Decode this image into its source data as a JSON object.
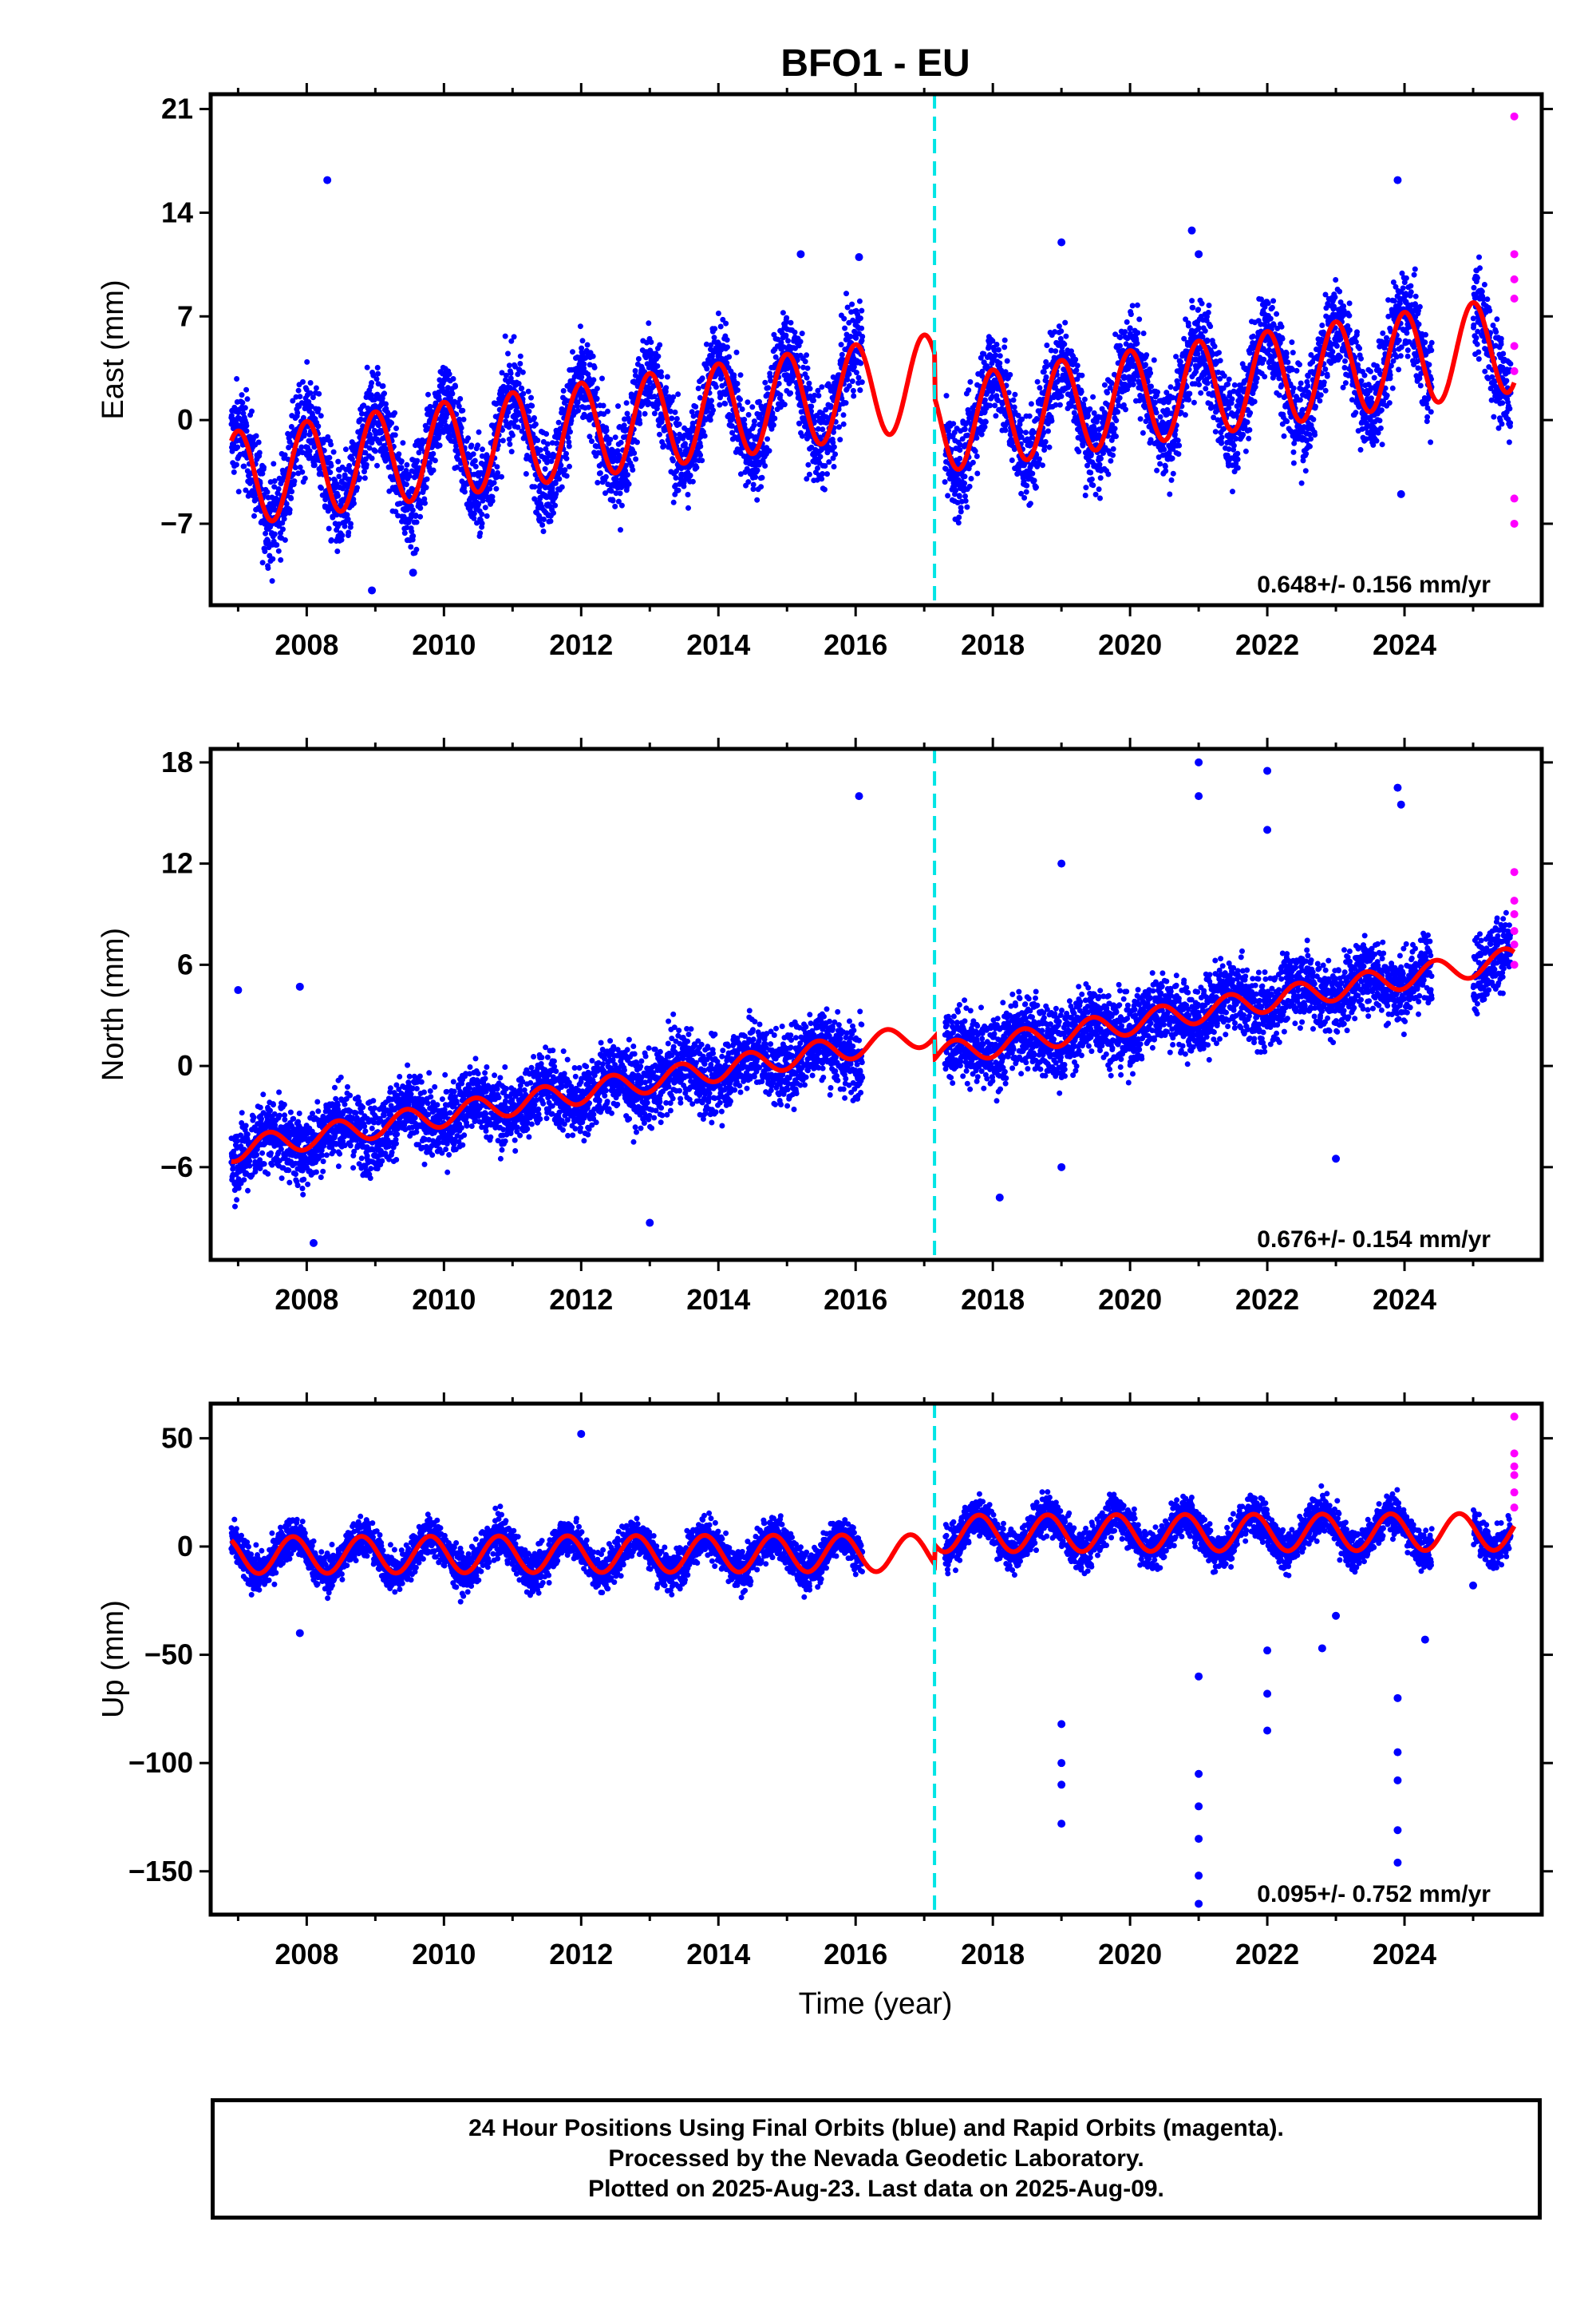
{
  "title": "BFO1 - EU",
  "footer": [
    "24 Hour Positions Using Final Orbits (blue) and Rapid Orbits (magenta).",
    "Processed by the Nevada Geodetic Laboratory.",
    "Plotted on 2025-Aug-23. Last data on 2025-Aug-09."
  ],
  "colors": {
    "final": "#0000ff",
    "rapid": "#ff00ff",
    "model": "#ff0000",
    "offset": "#00e5e5"
  },
  "chart_data": [
    {
      "type": "scatter",
      "ylabel": "East (mm)",
      "xlabel": "",
      "xlim": [
        2006.6,
        2026.0
      ],
      "ylim": [
        -12.5,
        22.0
      ],
      "yticks": [
        -7,
        0,
        7,
        14,
        21
      ],
      "xticks": [
        2008,
        2010,
        2012,
        2014,
        2016,
        2018,
        2020,
        2022,
        2024
      ],
      "offset_epoch": 2017.15,
      "rate_text": "0.648+/- 0.156 mm/yr",
      "model": {
        "start": 2006.9,
        "end": 2025.6,
        "t0": 2006.9,
        "intercept": -4.0,
        "slope": 0.648,
        "amp": 3.2,
        "phase": 0.75,
        "step_at": 2017.15,
        "step": -3.0
      },
      "noise_sd": 2.2,
      "gaps": [
        [
          2016.1,
          2017.3
        ],
        [
          2024.4,
          2025.0
        ]
      ],
      "outliers": [
        [
          2008.3,
          16.2
        ],
        [
          2008.95,
          -11.5
        ],
        [
          2009.55,
          -10.3
        ],
        [
          2015.2,
          11.2
        ],
        [
          2016.05,
          11.0
        ],
        [
          2019.0,
          12.0
        ],
        [
          2020.9,
          12.8
        ],
        [
          2021.0,
          11.2
        ],
        [
          2023.9,
          16.2
        ],
        [
          2023.95,
          -5.0
        ]
      ],
      "rapid": [
        [
          2025.6,
          20.5
        ],
        [
          2025.6,
          11.2
        ],
        [
          2025.6,
          9.5
        ],
        [
          2025.6,
          8.2
        ],
        [
          2025.6,
          5.0
        ],
        [
          2025.6,
          3.3
        ],
        [
          2025.6,
          -5.3
        ],
        [
          2025.6,
          -7.0
        ]
      ]
    },
    {
      "type": "scatter",
      "ylabel": "North (mm)",
      "xlabel": "",
      "xlim": [
        2006.6,
        2026.0
      ],
      "ylim": [
        -11.5,
        18.8
      ],
      "yticks": [
        -6,
        0,
        6,
        12,
        18
      ],
      "xticks": [
        2008,
        2010,
        2012,
        2014,
        2016,
        2018,
        2020,
        2022,
        2024
      ],
      "offset_epoch": 2017.15,
      "rate_text": "0.676+/- 0.154 mm/yr",
      "model": {
        "start": 2006.9,
        "end": 2025.6,
        "t0": 2006.9,
        "intercept": -5.0,
        "slope": 0.676,
        "amp": 0.7,
        "phase": 0.2,
        "step_at": 2017.15,
        "step": -1.3
      },
      "noise_sd": 1.5,
      "gaps": [
        [
          2016.1,
          2017.3
        ],
        [
          2024.4,
          2025.0
        ]
      ],
      "outliers": [
        [
          2007.0,
          4.5
        ],
        [
          2007.9,
          4.7
        ],
        [
          2008.1,
          -10.5
        ],
        [
          2013.0,
          -9.3
        ],
        [
          2016.05,
          16.0
        ],
        [
          2018.1,
          -7.8
        ],
        [
          2019.0,
          12.0
        ],
        [
          2019.0,
          -6.0
        ],
        [
          2021.0,
          18.0
        ],
        [
          2021.0,
          16.0
        ],
        [
          2022.0,
          17.5
        ],
        [
          2022.0,
          14.0
        ],
        [
          2023.0,
          -5.5
        ],
        [
          2023.9,
          16.5
        ],
        [
          2023.95,
          15.5
        ]
      ],
      "rapid": [
        [
          2025.6,
          11.5
        ],
        [
          2025.6,
          9.8
        ],
        [
          2025.6,
          9.0
        ],
        [
          2025.6,
          8.0
        ],
        [
          2025.6,
          7.2
        ],
        [
          2025.6,
          6.0
        ]
      ]
    },
    {
      "type": "scatter",
      "ylabel": "Up (mm)",
      "xlabel": "Time (year)",
      "xlim": [
        2006.6,
        2026.0
      ],
      "ylim": [
        -170.0,
        66.0
      ],
      "yticks": [
        -150,
        -100,
        -50,
        0,
        50
      ],
      "xticks": [
        2008,
        2010,
        2012,
        2014,
        2016,
        2018,
        2020,
        2022,
        2024
      ],
      "offset_epoch": 2017.15,
      "rate_text": "0.095+/- 0.752 mm/yr",
      "model": {
        "start": 2006.9,
        "end": 2025.6,
        "t0": 2006.9,
        "intercept": -4.0,
        "slope": 0.095,
        "amp": 8.5,
        "phase": 0.55,
        "step_at": 2017.15,
        "step": 9.0
      },
      "noise_sd": 6.5,
      "gaps": [
        [
          2016.1,
          2017.3
        ],
        [
          2024.4,
          2025.0
        ]
      ],
      "outliers": [
        [
          2012.0,
          52.0
        ],
        [
          2007.9,
          -40.0
        ],
        [
          2019.0,
          -82.0
        ],
        [
          2019.0,
          -100.0
        ],
        [
          2019.0,
          -110.0
        ],
        [
          2019.0,
          -128.0
        ],
        [
          2021.0,
          -105.0
        ],
        [
          2021.0,
          -120.0
        ],
        [
          2021.0,
          -135.0
        ],
        [
          2021.0,
          -152.0
        ],
        [
          2021.0,
          -165.0
        ],
        [
          2021.0,
          -60.0
        ],
        [
          2022.0,
          -68.0
        ],
        [
          2022.0,
          -85.0
        ],
        [
          2022.0,
          -48.0
        ],
        [
          2022.8,
          -47.0
        ],
        [
          2023.0,
          -32.0
        ],
        [
          2023.9,
          -70.0
        ],
        [
          2023.9,
          -95.0
        ],
        [
          2023.9,
          -108.0
        ],
        [
          2023.9,
          -131.0
        ],
        [
          2023.9,
          -146.0
        ],
        [
          2024.3,
          -43.0
        ],
        [
          2025.0,
          -18.0
        ]
      ],
      "rapid": [
        [
          2025.6,
          60.0
        ],
        [
          2025.6,
          43.0
        ],
        [
          2025.6,
          37.0
        ],
        [
          2025.6,
          33.0
        ],
        [
          2025.6,
          25.0
        ],
        [
          2025.6,
          18.0
        ]
      ]
    }
  ]
}
